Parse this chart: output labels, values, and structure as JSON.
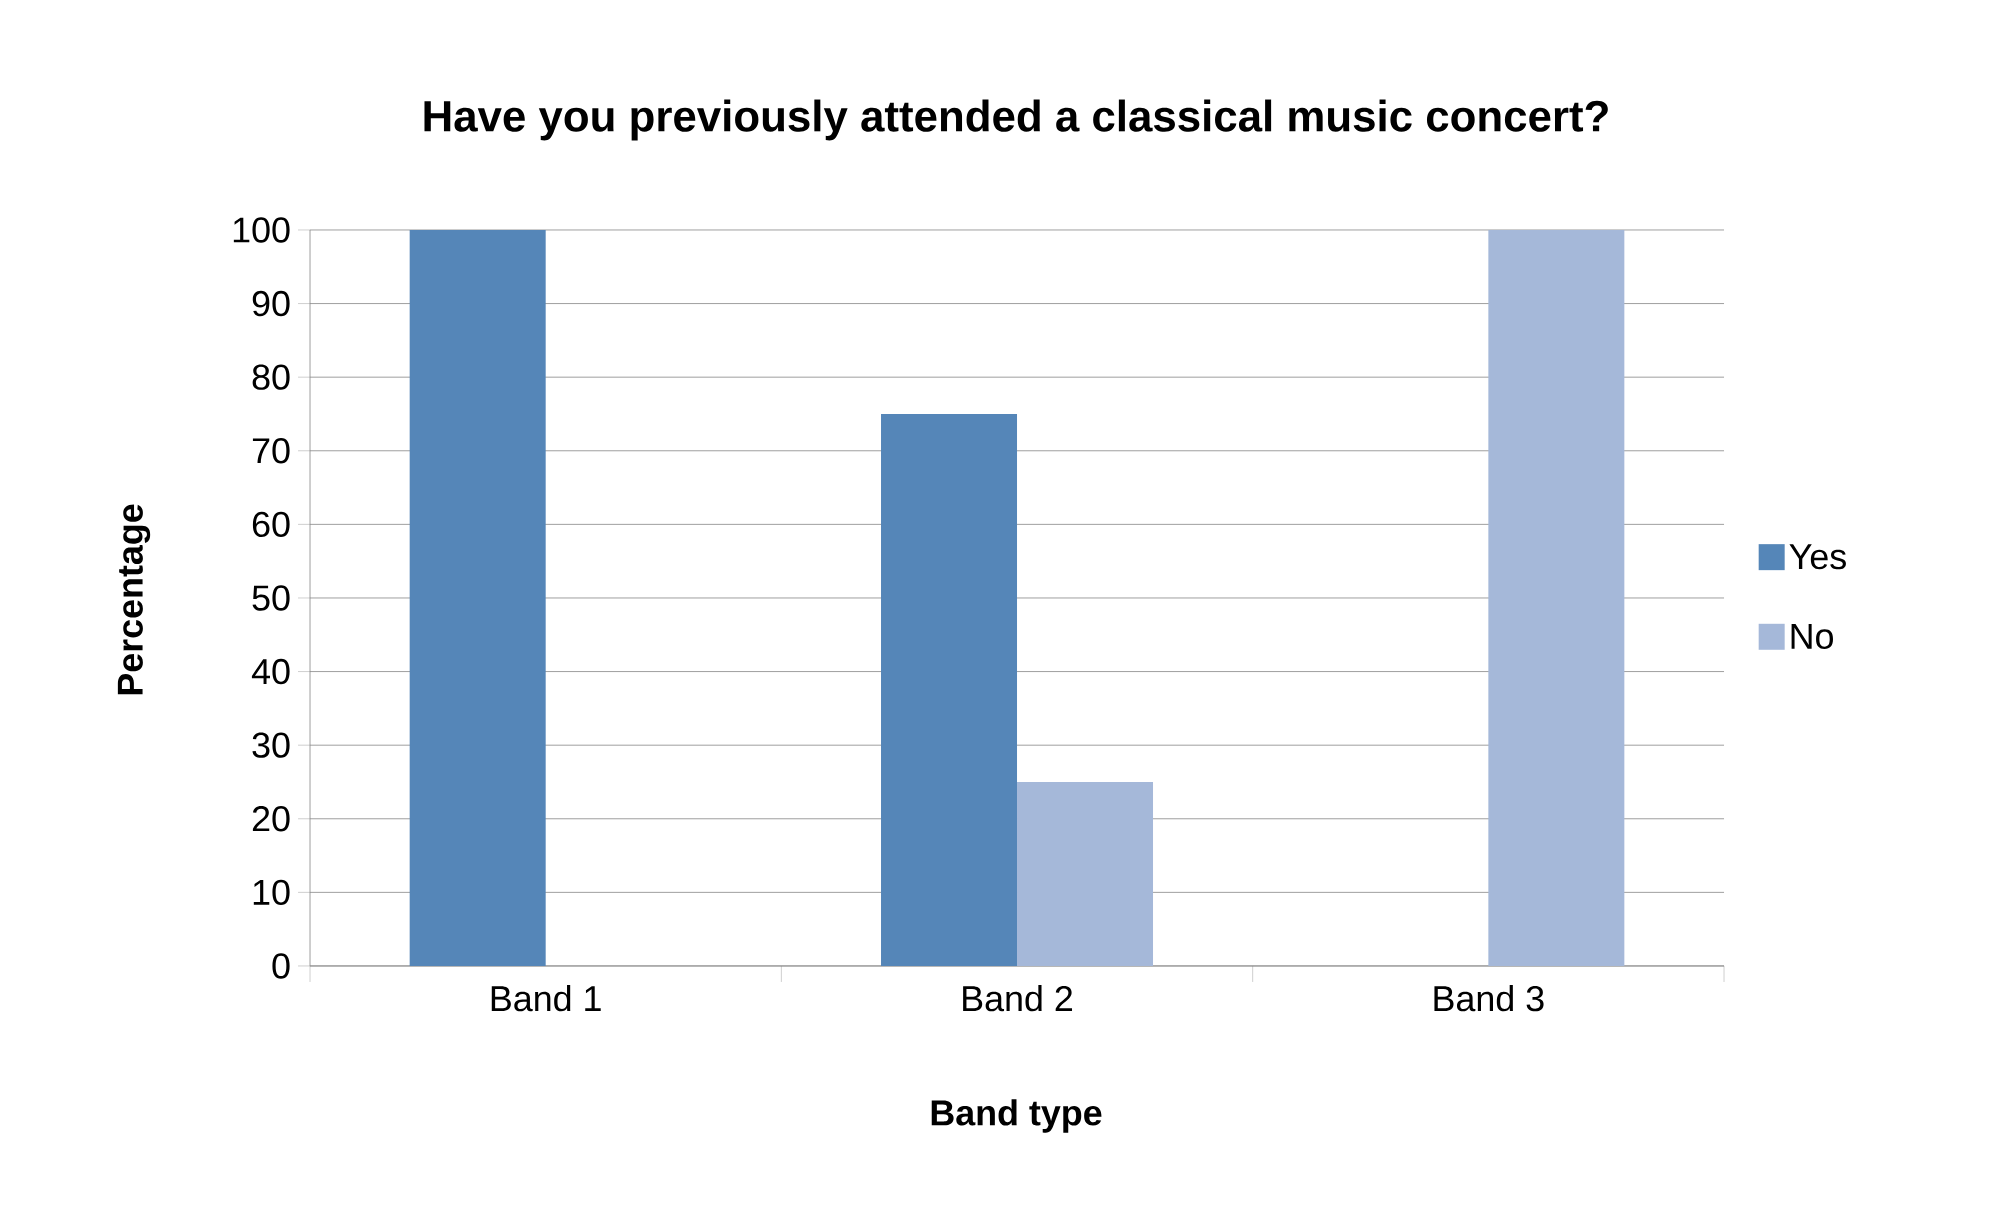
{
  "chart_data": {
    "type": "bar",
    "title": "Have you previously attended a classical music concert?",
    "xlabel": "Band type",
    "ylabel": "Percentage",
    "categories": [
      "Band 1",
      "Band 2",
      "Band 3"
    ],
    "series": [
      {
        "name": "Yes",
        "color": "#5586b8",
        "values": [
          100,
          75,
          0
        ]
      },
      {
        "name": "No",
        "color": "#a5b8d9",
        "values": [
          0,
          25,
          100
        ]
      }
    ],
    "ylim": [
      0,
      100
    ],
    "yticks": [
      0,
      10,
      20,
      30,
      40,
      50,
      60,
      70,
      80,
      90,
      100
    ],
    "grid": "y",
    "legend": "right"
  }
}
